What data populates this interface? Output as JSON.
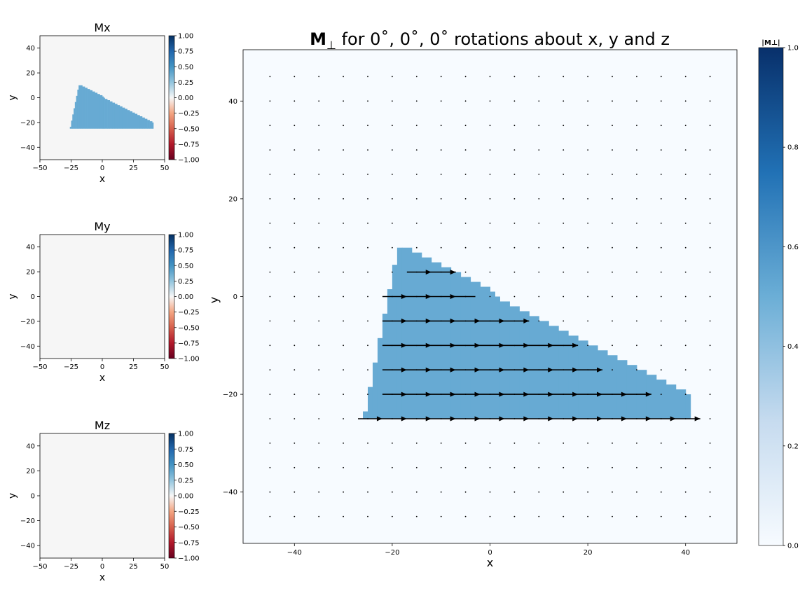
{
  "figure": {
    "title_symbol": "M",
    "title_sub": "⊥",
    "title_rest": " for 0˚, 0˚, 0˚ rotations about x, y and z"
  },
  "chart_data": [
    {
      "id": "mx",
      "type": "heatmap",
      "title": "Mx",
      "xlabel": "x",
      "ylabel": "y",
      "xlim": [
        -50,
        50
      ],
      "ylim": [
        -50,
        50
      ],
      "xticks": [
        "−50",
        "−25",
        "0",
        "25",
        "50"
      ],
      "yticks": [
        "−40",
        "−20",
        "0",
        "20",
        "40"
      ],
      "colormap": "RdBu",
      "clim": [
        -1,
        1
      ],
      "background_value": 0,
      "region_value": 0.5,
      "region_color": "#67aad3",
      "background_color": "#f6f6f6",
      "colorbar_ticks": [
        "1.00",
        "0.75",
        "0.50",
        "0.25",
        "0.00",
        "−0.25",
        "−0.50",
        "−0.75",
        "−1.00"
      ]
    },
    {
      "id": "my",
      "type": "heatmap",
      "title": "My",
      "xlabel": "x",
      "ylabel": "y",
      "xlim": [
        -50,
        50
      ],
      "ylim": [
        -50,
        50
      ],
      "xticks": [
        "−50",
        "−25",
        "0",
        "25",
        "50"
      ],
      "yticks": [
        "−40",
        "−20",
        "0",
        "20",
        "40"
      ],
      "colormap": "RdBu",
      "clim": [
        -1,
        1
      ],
      "background_value": 0,
      "background_color": "#f6f6f6",
      "colorbar_ticks": [
        "1.00",
        "0.75",
        "0.50",
        "0.25",
        "0.00",
        "−0.25",
        "−0.50",
        "−0.75",
        "−1.00"
      ]
    },
    {
      "id": "mz",
      "type": "heatmap",
      "title": "Mz",
      "xlabel": "x",
      "ylabel": "y",
      "xlim": [
        -50,
        50
      ],
      "ylim": [
        -50,
        50
      ],
      "xticks": [
        "−50",
        "−25",
        "0",
        "25",
        "50"
      ],
      "yticks": [
        "−40",
        "−20",
        "0",
        "20",
        "40"
      ],
      "colormap": "RdBu",
      "clim": [
        -1,
        1
      ],
      "background_value": 0,
      "background_color": "#f6f6f6",
      "colorbar_ticks": [
        "1.00",
        "0.75",
        "0.50",
        "0.25",
        "0.00",
        "−0.25",
        "−0.50",
        "−0.75",
        "−1.00"
      ]
    },
    {
      "id": "mperp",
      "type": "heatmap",
      "xlabel": "x",
      "ylabel": "y",
      "xlim": [
        -50.5,
        50.5
      ],
      "ylim": [
        -50.5,
        50.5
      ],
      "xticks": [
        "−40",
        "−20",
        "0",
        "20",
        "40"
      ],
      "yticks": [
        "−40",
        "−20",
        "0",
        "20",
        "40"
      ],
      "colormap": "Blues",
      "clim": [
        0,
        1
      ],
      "background_color": "#f7fbff",
      "region_value": 0.5,
      "region_color": "#67aad3",
      "colorbar_label": "|M⊥|",
      "colorbar_ticks": [
        "1.0",
        "0.8",
        "0.6",
        "0.4",
        "0.2",
        "0.0"
      ],
      "grid_dot_spacing": 5,
      "arrow_direction": "+x",
      "arrow_rows": [
        {
          "y": 5,
          "x_start": -17,
          "x_end": -7
        },
        {
          "y": 0,
          "x_start": -22,
          "x_end": -3
        },
        {
          "y": -5,
          "x_start": -22,
          "x_end": 8
        },
        {
          "y": -10,
          "x_start": -22,
          "x_end": 18
        },
        {
          "y": -15,
          "x_start": -22,
          "x_end": 23
        },
        {
          "y": -20,
          "x_start": -22,
          "x_end": 33
        },
        {
          "y": -25,
          "x_start": -27,
          "x_end": 43
        }
      ]
    }
  ],
  "region_profile": {
    "description_units": "x in data units, top y of the magnetised column; bottom is y = -25",
    "bottom_y": -25,
    "columns": [
      {
        "x0": -26,
        "x1": -25,
        "top": -23.5
      },
      {
        "x0": -25,
        "x1": -24,
        "top": -18.5
      },
      {
        "x0": -24,
        "x1": -23,
        "top": -13.5
      },
      {
        "x0": -23,
        "x1": -22,
        "top": -8.5
      },
      {
        "x0": -22,
        "x1": -21,
        "top": -3.5
      },
      {
        "x0": -21,
        "x1": -20,
        "top": 1.5
      },
      {
        "x0": -20,
        "x1": -19,
        "top": 6.5
      },
      {
        "x0": -19,
        "x1": -18,
        "top": 10
      },
      {
        "x0": -18,
        "x1": -16,
        "top": 10
      },
      {
        "x0": -16,
        "x1": -14,
        "top": 9
      },
      {
        "x0": -14,
        "x1": -12,
        "top": 8
      },
      {
        "x0": -12,
        "x1": -10,
        "top": 7
      },
      {
        "x0": -10,
        "x1": -8,
        "top": 6
      },
      {
        "x0": -8,
        "x1": -6,
        "top": 5
      },
      {
        "x0": -6,
        "x1": -4,
        "top": 4
      },
      {
        "x0": -4,
        "x1": -2,
        "top": 3
      },
      {
        "x0": -2,
        "x1": 0,
        "top": 2
      },
      {
        "x0": 0,
        "x1": 1,
        "top": 1
      },
      {
        "x0": 1,
        "x1": 2,
        "top": 0
      },
      {
        "x0": 2,
        "x1": 4,
        "top": -1
      },
      {
        "x0": 4,
        "x1": 6,
        "top": -2
      },
      {
        "x0": 6,
        "x1": 8,
        "top": -3
      },
      {
        "x0": 8,
        "x1": 10,
        "top": -4
      },
      {
        "x0": 10,
        "x1": 12,
        "top": -5
      },
      {
        "x0": 12,
        "x1": 14,
        "top": -6
      },
      {
        "x0": 14,
        "x1": 16,
        "top": -7
      },
      {
        "x0": 16,
        "x1": 18,
        "top": -8
      },
      {
        "x0": 18,
        "x1": 20,
        "top": -9
      },
      {
        "x0": 20,
        "x1": 22,
        "top": -10
      },
      {
        "x0": 22,
        "x1": 24,
        "top": -11
      },
      {
        "x0": 24,
        "x1": 26,
        "top": -12
      },
      {
        "x0": 26,
        "x1": 28,
        "top": -13
      },
      {
        "x0": 28,
        "x1": 30,
        "top": -14
      },
      {
        "x0": 30,
        "x1": 32,
        "top": -15
      },
      {
        "x0": 32,
        "x1": 34,
        "top": -16
      },
      {
        "x0": 34,
        "x1": 36,
        "top": -17
      },
      {
        "x0": 36,
        "x1": 38,
        "top": -18
      },
      {
        "x0": 38,
        "x1": 40,
        "top": -19
      },
      {
        "x0": 40,
        "x1": 41,
        "top": -20
      }
    ]
  }
}
